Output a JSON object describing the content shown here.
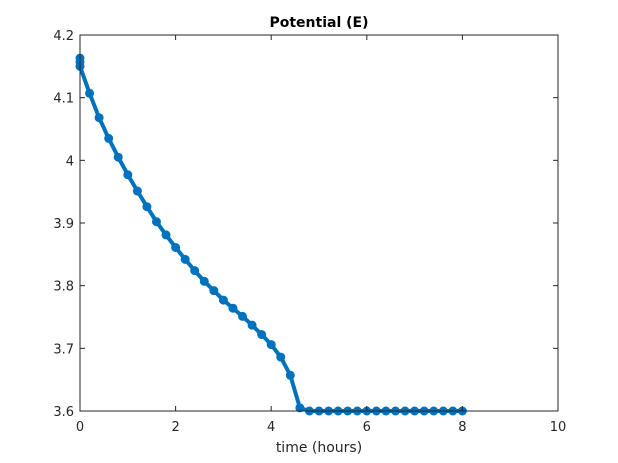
{
  "chart_data": {
    "type": "line",
    "title": "Potential (E)",
    "xlabel": "time (hours)",
    "ylabel": "",
    "xlim": [
      0,
      10
    ],
    "ylim": [
      3.6,
      4.2
    ],
    "xticks": [
      0,
      2,
      4,
      6,
      8,
      10
    ],
    "xtick_labels": [
      "0",
      "2",
      "4",
      "6",
      "8",
      "10"
    ],
    "yticks": [
      3.6,
      3.7,
      3.8,
      3.9,
      4.0,
      4.1,
      4.2
    ],
    "ytick_labels": [
      "3.6",
      "3.7",
      "3.8",
      "3.9",
      "4",
      "4.1",
      "4.2"
    ],
    "grid": false,
    "series": [
      {
        "color": "#0072bd",
        "marker": "circle",
        "x": [
          0,
          0,
          0,
          0.2,
          0.4,
          0.6,
          0.8,
          1.0,
          1.2,
          1.4,
          1.6,
          1.8,
          2.0,
          2.2,
          2.4,
          2.6,
          2.8,
          3.0,
          3.2,
          3.4,
          3.6,
          3.8,
          4.0,
          4.2,
          4.4,
          4.6,
          4.8,
          5.0,
          5.2,
          5.4,
          5.6,
          5.8,
          6.0,
          6.2,
          6.4,
          6.6,
          6.8,
          7.0,
          7.2,
          7.4,
          7.6,
          7.8,
          8.0
        ],
        "y": [
          4.163,
          4.157,
          4.15,
          4.107,
          4.068,
          4.035,
          4.005,
          3.977,
          3.951,
          3.926,
          3.902,
          3.881,
          3.861,
          3.842,
          3.824,
          3.807,
          3.792,
          3.777,
          3.764,
          3.751,
          3.737,
          3.722,
          3.706,
          3.686,
          3.657,
          3.605,
          3.6,
          3.6,
          3.6,
          3.6,
          3.6,
          3.6,
          3.6,
          3.6,
          3.6,
          3.6,
          3.6,
          3.6,
          3.6,
          3.6,
          3.6,
          3.6,
          3.6
        ]
      }
    ]
  }
}
